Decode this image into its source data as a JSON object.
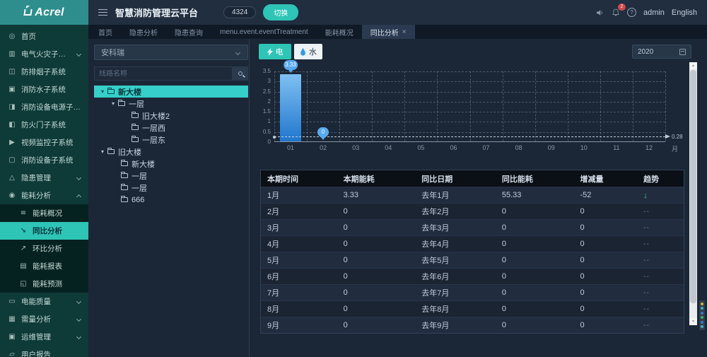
{
  "brand": {
    "logo_text": "Acrel"
  },
  "header": {
    "title": "智慧消防管理云平台",
    "count_badge": "4324",
    "switch_button": "切换",
    "notification_count": "2",
    "help_glyph": "?",
    "user_name": "admin",
    "language": "English"
  },
  "tabs": [
    {
      "id": "home",
      "label": "首页"
    },
    {
      "id": "hazard-analysis",
      "label": "隐患分析"
    },
    {
      "id": "hazard-query",
      "label": "隐患查询"
    },
    {
      "id": "event-treatment",
      "label": "menu.event.eventTreatment"
    },
    {
      "id": "energy-overview",
      "label": "能耗概况"
    },
    {
      "id": "yoy-analysis",
      "label": "同比分析",
      "active": true,
      "closable": true,
      "close_glyph": "×"
    }
  ],
  "sidebar": {
    "items": [
      {
        "id": "home",
        "label": "首页",
        "icon": "home-icon",
        "glyph": "◎"
      },
      {
        "id": "electrical-fire",
        "label": "电气火灾子系统",
        "icon": "bar-chart-icon",
        "glyph": "▥",
        "chevron": "down"
      },
      {
        "id": "smoke-control",
        "label": "防排烟子系统",
        "icon": "smoke-icon",
        "glyph": "◫"
      },
      {
        "id": "fire-water",
        "label": "消防水子系统",
        "icon": "water-system-icon",
        "glyph": "▣"
      },
      {
        "id": "fire-equipment-power",
        "label": "消防设备电源子系统",
        "icon": "power-icon",
        "glyph": "◨"
      },
      {
        "id": "fire-door",
        "label": "防火门子系统",
        "icon": "door-icon",
        "glyph": "◧"
      },
      {
        "id": "video-monitor",
        "label": "视频监控子系统",
        "icon": "video-icon",
        "glyph": "▶"
      },
      {
        "id": "fire-equipment",
        "label": "消防设备子系统",
        "icon": "device-icon",
        "glyph": "▢"
      },
      {
        "id": "hazard-management",
        "label": "隐患管理",
        "icon": "hazard-icon",
        "glyph": "△",
        "chevron": "down"
      },
      {
        "id": "energy-analysis",
        "label": "能耗分析",
        "icon": "energy-icon",
        "glyph": "◉",
        "chevron": "up",
        "children": [
          {
            "id": "energy-overview",
            "label": "能耗概况",
            "icon": "overview-icon",
            "glyph": "≡"
          },
          {
            "id": "yoy-analysis",
            "label": "同比分析",
            "icon": "yoy-trend-icon",
            "glyph": "↘",
            "active": true
          },
          {
            "id": "mom-analysis",
            "label": "环比分析",
            "icon": "mom-trend-icon",
            "glyph": "↗"
          },
          {
            "id": "energy-report",
            "label": "能耗报表",
            "icon": "report-icon",
            "glyph": "▤"
          },
          {
            "id": "energy-forecast",
            "label": "能耗预测",
            "icon": "forecast-icon",
            "glyph": "◱"
          }
        ]
      },
      {
        "id": "power-quality",
        "label": "电能质量",
        "icon": "power-quality-icon",
        "glyph": "▭",
        "chevron": "down"
      },
      {
        "id": "demand-analysis",
        "label": "需量分析",
        "icon": "demand-icon",
        "glyph": "▦",
        "chevron": "down"
      },
      {
        "id": "ops-management",
        "label": "运维管理",
        "icon": "ops-icon",
        "glyph": "▣",
        "chevron": "down"
      },
      {
        "id": "user-report",
        "label": "用户报告",
        "icon": "user-report-icon",
        "glyph": "▱"
      }
    ]
  },
  "tree_panel": {
    "dropdown_value": "安科瑞",
    "search_placeholder": "线路名称",
    "expander_glyph": "▾",
    "nodes": [
      {
        "label": "新大楼",
        "depth": 0,
        "expanded": true,
        "selected": true
      },
      {
        "label": "一层",
        "depth": 1,
        "expanded": true
      },
      {
        "label": "旧大楼2",
        "depth": 2
      },
      {
        "label": "一层西",
        "depth": 2
      },
      {
        "label": "一层东",
        "depth": 2
      },
      {
        "label": "旧大楼",
        "depth": 0,
        "expanded": true
      },
      {
        "label": "新大楼",
        "depth": 1
      },
      {
        "label": "一层",
        "depth": 1
      },
      {
        "label": "一层",
        "depth": 1
      },
      {
        "label": "666",
        "depth": 1
      }
    ]
  },
  "toolbar": {
    "electric_button": "电",
    "water_button": "水",
    "year_value": "2020"
  },
  "chart_data": {
    "type": "bar",
    "title": "",
    "categories": [
      "01",
      "02",
      "03",
      "04",
      "05",
      "06",
      "07",
      "08",
      "09",
      "10",
      "11",
      "12"
    ],
    "values": [
      3.33,
      0,
      0,
      0,
      0,
      0,
      0,
      0,
      0,
      0,
      0,
      0
    ],
    "point_labels": [
      {
        "index": 0,
        "label": "3.33"
      },
      {
        "index": 1,
        "label": "0"
      }
    ],
    "yticks": [
      0,
      0.5,
      1,
      1.5,
      2,
      2.5,
      3,
      3.5
    ],
    "ylim": [
      0,
      3.5
    ],
    "x_unit": "月",
    "average_line": {
      "value": 0.28,
      "label": "0.28"
    },
    "grid": true,
    "legend": "none",
    "bar_color_top": "#7fc0f2",
    "bar_color_bottom": "#2176cd"
  },
  "table": {
    "headers": [
      "本期时间",
      "本期能耗",
      "同比日期",
      "同比能耗",
      "增减量",
      "趋势"
    ],
    "trend_down_glyph": "↓",
    "trend_flat_glyph": "--",
    "rows": [
      {
        "cells": [
          "1月",
          "3.33",
          "去年1月",
          "55.33",
          "-52"
        ],
        "trend": "down"
      },
      {
        "cells": [
          "2月",
          "0",
          "去年2月",
          "0",
          "0"
        ],
        "trend": "flat"
      },
      {
        "cells": [
          "3月",
          "0",
          "去年3月",
          "0",
          "0"
        ],
        "trend": "flat"
      },
      {
        "cells": [
          "4月",
          "0",
          "去年4月",
          "0",
          "0"
        ],
        "trend": "flat"
      },
      {
        "cells": [
          "5月",
          "0",
          "去年5月",
          "0",
          "0"
        ],
        "trend": "flat"
      },
      {
        "cells": [
          "6月",
          "0",
          "去年6月",
          "0",
          "0"
        ],
        "trend": "flat"
      },
      {
        "cells": [
          "7月",
          "0",
          "去年7月",
          "0",
          "0"
        ],
        "trend": "flat"
      },
      {
        "cells": [
          "8月",
          "0",
          "去年8月",
          "0",
          "0"
        ],
        "trend": "flat"
      },
      {
        "cells": [
          "9月",
          "0",
          "去年9月",
          "0",
          "0"
        ],
        "trend": "flat"
      }
    ]
  },
  "side_widget": {
    "dots": [
      "#d4b43a",
      "#3ab5c8",
      "#3a78d4",
      "#35b56a",
      "#3a78d4",
      "#3ab5c8"
    ]
  },
  "colors": {
    "accent_teal": "#2ec4b6",
    "tree_selected_cyan": "#36cfc9",
    "pin_blue": "#58a9ef",
    "trend_down_green": "#3ecb77",
    "notification_red": "#df4b4b"
  }
}
